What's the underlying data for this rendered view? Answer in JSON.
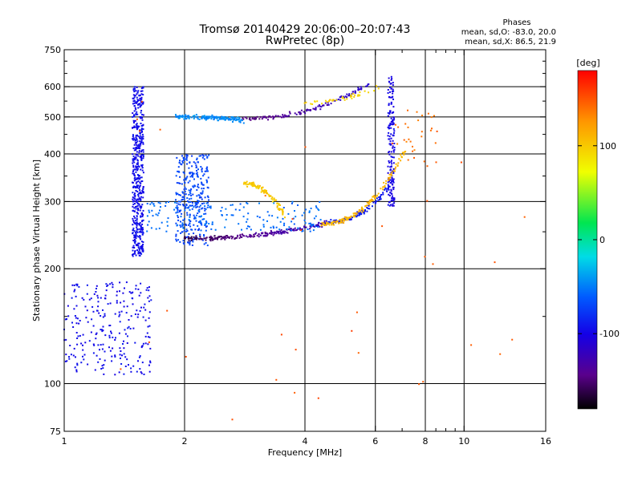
{
  "header": {
    "title_line1": "Tromsø 20140429 20:06:00–20:07:43",
    "title_line2": "RwPretec (8p)",
    "phase_title": "Phases",
    "phase_o": "mean, sd,O: -83.0, 20.0",
    "phase_x": "mean, sd,X:  86.5, 21.9"
  },
  "chart_data": {
    "type": "scatter",
    "xlabel": "Frequency [MHz]",
    "ylabel": "Stationary phase Virtual Height [km]",
    "x_scale": "log",
    "y_scale": "log",
    "xlim": [
      1,
      16
    ],
    "ylim": [
      75,
      750
    ],
    "x_ticks": [
      {
        "value": 1,
        "label": "1"
      },
      {
        "value": 2,
        "label": "2"
      },
      {
        "value": 4,
        "label": "4"
      },
      {
        "value": 6,
        "label": "6"
      },
      {
        "value": 8,
        "label": "8"
      },
      {
        "value": 10,
        "label": "10"
      },
      {
        "value": 16,
        "label": "16"
      }
    ],
    "y_ticks": [
      {
        "value": 75,
        "label": "75"
      },
      {
        "value": 100,
        "label": "100"
      },
      {
        "value": 200,
        "label": "200"
      },
      {
        "value": 300,
        "label": "300"
      },
      {
        "value": 400,
        "label": "400"
      },
      {
        "value": 500,
        "label": "500"
      },
      {
        "value": 600,
        "label": "600"
      },
      {
        "value": 750,
        "label": "750"
      }
    ],
    "grid_x": [
      1,
      2,
      4,
      6,
      8,
      10
    ],
    "grid_y": [
      100,
      200,
      300,
      400,
      500,
      600
    ],
    "minor_x": [
      7,
      8.5,
      9,
      9.5
    ],
    "minor_y": [
      75,
      150,
      250,
      350,
      450,
      550,
      650,
      700
    ],
    "colorbar": {
      "label": "[deg]",
      "range": [
        -180,
        180
      ],
      "ticks": [
        {
          "value": 100,
          "label": "100"
        },
        {
          "value": 0,
          "label": "0"
        },
        {
          "value": -100,
          "label": "-100"
        }
      ]
    },
    "series": [
      {
        "label_ref": "o_mode",
        "phase_mean": -83.0,
        "phase_sd": 20.0,
        "clusters": [
          {
            "kind": "column",
            "x": [
              1.48,
              1.58
            ],
            "y": [
              215,
              600
            ],
            "n": 500,
            "phase": -95
          },
          {
            "kind": "column",
            "x": [
              1.9,
              2.3
            ],
            "y": [
              230,
              400
            ],
            "n": 320,
            "phase": -70
          },
          {
            "kind": "arc",
            "fx": 2.0,
            "fy": 240,
            "tx": 4.6,
            "ty": 265,
            "n": 230,
            "phase": -160,
            "phase_end": -120
          },
          {
            "kind": "arc",
            "fx": 4.6,
            "fy": 265,
            "tx": 6.5,
            "ty": 330,
            "n": 110,
            "phase": -90
          },
          {
            "kind": "column",
            "x": [
              6.45,
              6.7
            ],
            "y": [
              290,
              640
            ],
            "n": 170,
            "phase": -100
          },
          {
            "kind": "arc",
            "fx": 1.9,
            "fy": 500,
            "tx": 2.8,
            "ty": 490,
            "n": 160,
            "phase": -45
          },
          {
            "kind": "arc",
            "fx": 2.8,
            "fy": 495,
            "tx": 5.8,
            "ty": 610,
            "n": 130,
            "phase": -150,
            "phase_end": -110
          },
          {
            "kind": "cloud",
            "x": [
              1.0,
              1.65
            ],
            "y": [
              105,
              185
            ],
            "n": 260,
            "phase": -95
          },
          {
            "kind": "cloud",
            "x": [
              1.6,
              4.4
            ],
            "y": [
              250,
              300
            ],
            "n": 170,
            "phase": -55
          }
        ]
      },
      {
        "label_ref": "x_mode",
        "phase_mean": 86.5,
        "phase_sd": 21.9,
        "clusters": [
          {
            "kind": "arc",
            "fx": 2.8,
            "fy": 335,
            "tx": 3.6,
            "ty": 270,
            "n": 100,
            "phase": 100
          },
          {
            "kind": "arc",
            "fx": 4.4,
            "fy": 262,
            "tx": 7.1,
            "ty": 405,
            "n": 150,
            "phase": 110
          },
          {
            "kind": "arc",
            "fx": 4.0,
            "fy": 545,
            "tx": 6.2,
            "ty": 605,
            "n": 40,
            "phase": 95
          },
          {
            "kind": "cloud",
            "x": [
              6.8,
              8.6
            ],
            "y": [
              380,
              520
            ],
            "n": 28,
            "phase": 140
          },
          {
            "kind": "cloud",
            "x": [
              1.2,
              15.0
            ],
            "y": [
              80,
              650
            ],
            "n": 36,
            "phase": 150
          }
        ]
      }
    ]
  }
}
